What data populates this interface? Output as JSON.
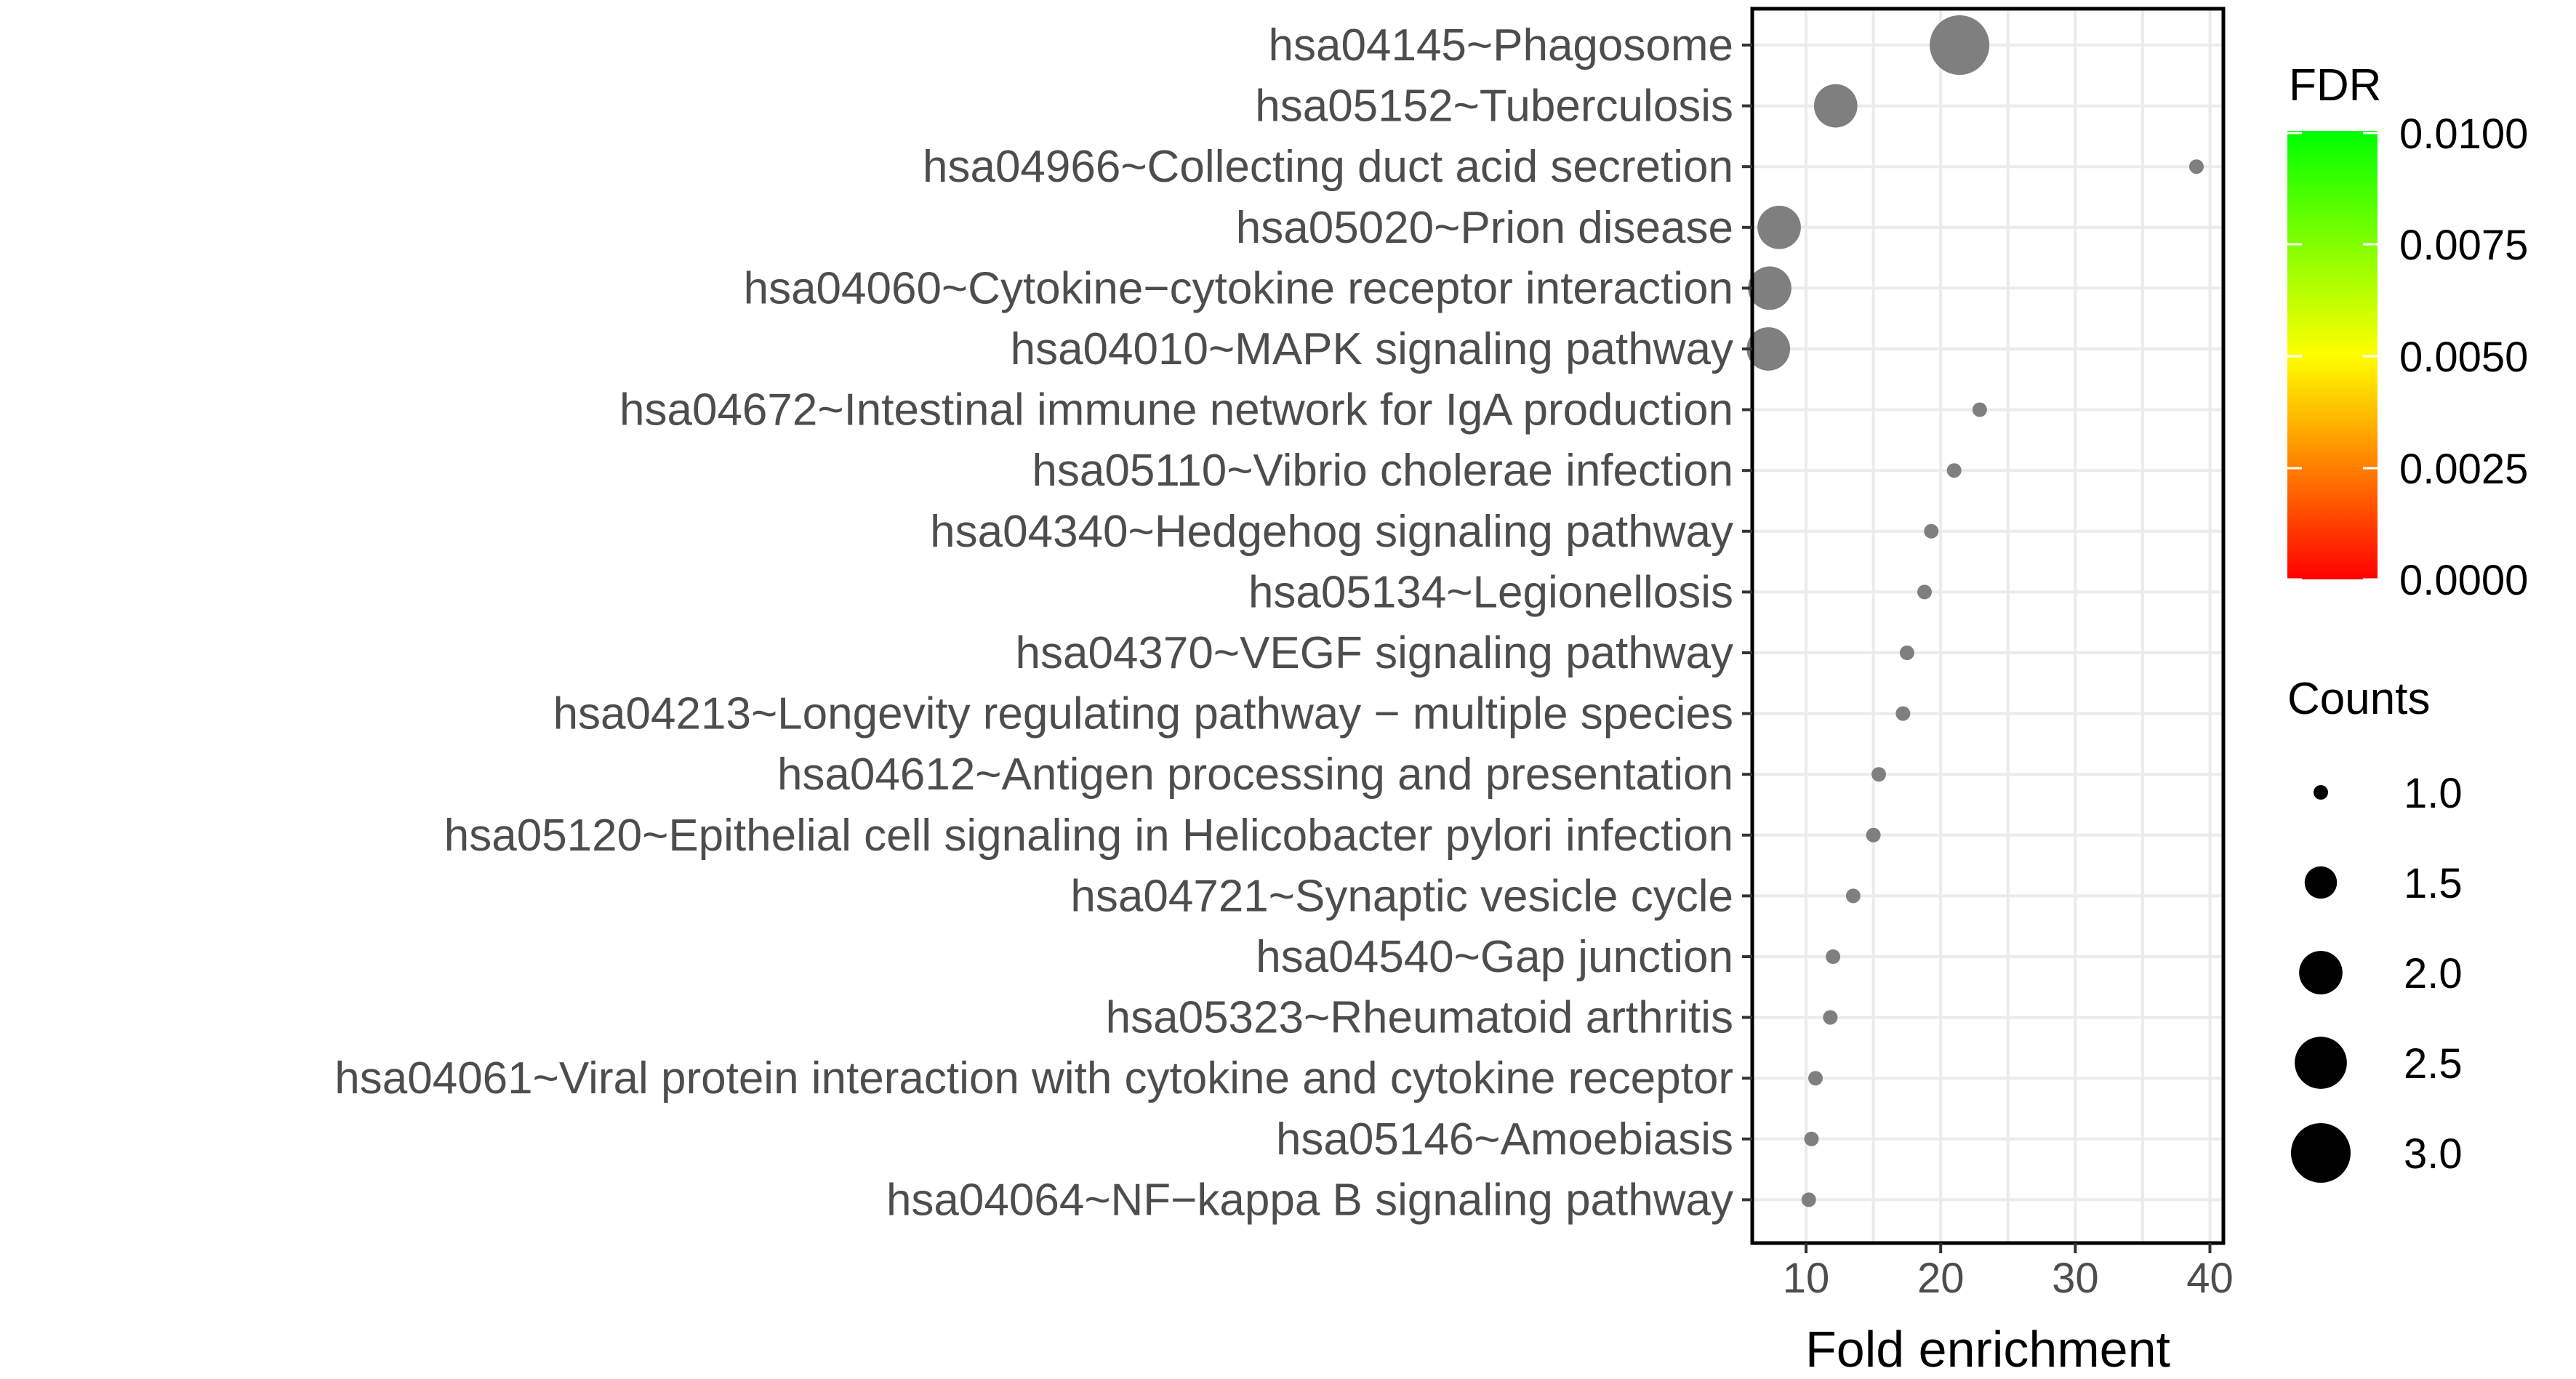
{
  "chart_data": {
    "type": "scatter",
    "title": "",
    "xlabel": "Fold enrichment",
    "ylabel": "",
    "xlim": [
      6,
      41
    ],
    "xticks": [
      10,
      20,
      30,
      40
    ],
    "grid": true,
    "point_color": "#7f7f7f",
    "categories": [
      "hsa04145~Phagosome",
      "hsa05152~Tuberculosis",
      "hsa04966~Collecting duct acid secretion",
      "hsa05020~Prion disease",
      "hsa04060~Cytokine−cytokine receptor interaction",
      "hsa04010~MAPK signaling pathway",
      "hsa04672~Intestinal immune network for IgA production",
      "hsa05110~Vibrio cholerae infection",
      "hsa04340~Hedgehog signaling pathway",
      "hsa05134~Legionellosis",
      "hsa04370~VEGF signaling pathway",
      "hsa04213~Longevity regulating pathway − multiple species",
      "hsa04612~Antigen processing and presentation",
      "hsa05120~Epithelial cell signaling in Helicobacter pylori infection",
      "hsa04721~Synaptic vesicle cycle",
      "hsa04540~Gap junction",
      "hsa05323~Rheumatoid arthritis",
      "hsa04061~Viral protein interaction with cytokine and cytokine receptor",
      "hsa05146~Amoebiasis",
      "hsa04064~NF−kappa B signaling pathway"
    ],
    "fold_enrichment": [
      21.4,
      12.2,
      39.0,
      8.0,
      7.3,
      7.2,
      22.9,
      21.0,
      19.3,
      18.8,
      17.5,
      17.2,
      15.4,
      15.0,
      13.5,
      12.0,
      11.8,
      10.7,
      10.4,
      10.2
    ],
    "counts": [
      3,
      2,
      1,
      2,
      2,
      2,
      1,
      1,
      1,
      1,
      1,
      1,
      1,
      1,
      1,
      1,
      1,
      1,
      1,
      1
    ],
    "legend": {
      "color": {
        "title": "FDR",
        "ticks": [
          "0.0100",
          "0.0075",
          "0.0050",
          "0.0025",
          "0.0000"
        ],
        "gradient": [
          "#00ff00",
          "#ffff00",
          "#ff0000"
        ],
        "placement": "right"
      },
      "size": {
        "title": "Counts",
        "ticks": [
          "1.0",
          "1.5",
          "2.0",
          "2.5",
          "3.0"
        ],
        "values": [
          1.0,
          1.5,
          2.0,
          2.5,
          3.0
        ],
        "placement": "right"
      }
    }
  }
}
